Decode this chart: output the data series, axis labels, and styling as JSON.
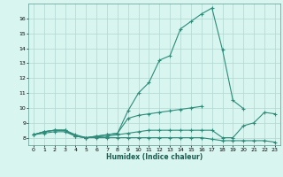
{
  "xlabel": "Humidex (Indice chaleur)",
  "x": [
    0,
    1,
    2,
    3,
    4,
    5,
    6,
    7,
    8,
    9,
    10,
    11,
    12,
    13,
    14,
    15,
    16,
    17,
    18,
    19,
    20,
    21,
    22,
    23
  ],
  "line1": [
    8.2,
    8.4,
    8.5,
    8.5,
    8.1,
    8.0,
    8.1,
    8.2,
    8.3,
    9.8,
    11.0,
    11.7,
    13.2,
    13.5,
    15.3,
    15.8,
    16.3,
    16.7,
    13.9,
    10.5,
    9.95,
    null,
    null,
    null
  ],
  "line2": [
    8.2,
    8.4,
    8.5,
    8.5,
    8.1,
    8.0,
    8.1,
    8.2,
    8.3,
    9.3,
    9.5,
    9.6,
    9.7,
    9.8,
    9.9,
    10.0,
    10.1,
    null,
    null,
    null,
    null,
    null,
    null,
    null
  ],
  "line3": [
    8.2,
    8.4,
    8.5,
    8.5,
    8.2,
    8.0,
    8.05,
    8.1,
    8.2,
    8.3,
    8.4,
    8.5,
    8.5,
    8.5,
    8.5,
    8.5,
    8.5,
    8.5,
    8.0,
    8.0,
    8.8,
    9.0,
    9.7,
    9.6
  ],
  "line4": [
    8.2,
    8.3,
    8.4,
    8.4,
    8.1,
    8.0,
    8.0,
    8.0,
    8.0,
    8.0,
    8.0,
    8.0,
    8.0,
    8.0,
    8.0,
    8.0,
    8.0,
    7.9,
    7.8,
    7.8,
    7.8,
    7.8,
    7.8,
    7.7
  ],
  "line_color": "#2e8b7a",
  "bg_color": "#d8f5f0",
  "grid_color": "#b0d8d0",
  "ylim": [
    7.5,
    17.0
  ],
  "xlim": [
    -0.5,
    23.5
  ],
  "yticks": [
    8,
    9,
    10,
    11,
    12,
    13,
    14,
    15,
    16
  ],
  "xticks": [
    0,
    1,
    2,
    3,
    4,
    5,
    6,
    7,
    8,
    9,
    10,
    11,
    12,
    13,
    14,
    15,
    16,
    17,
    18,
    19,
    20,
    21,
    22,
    23
  ]
}
